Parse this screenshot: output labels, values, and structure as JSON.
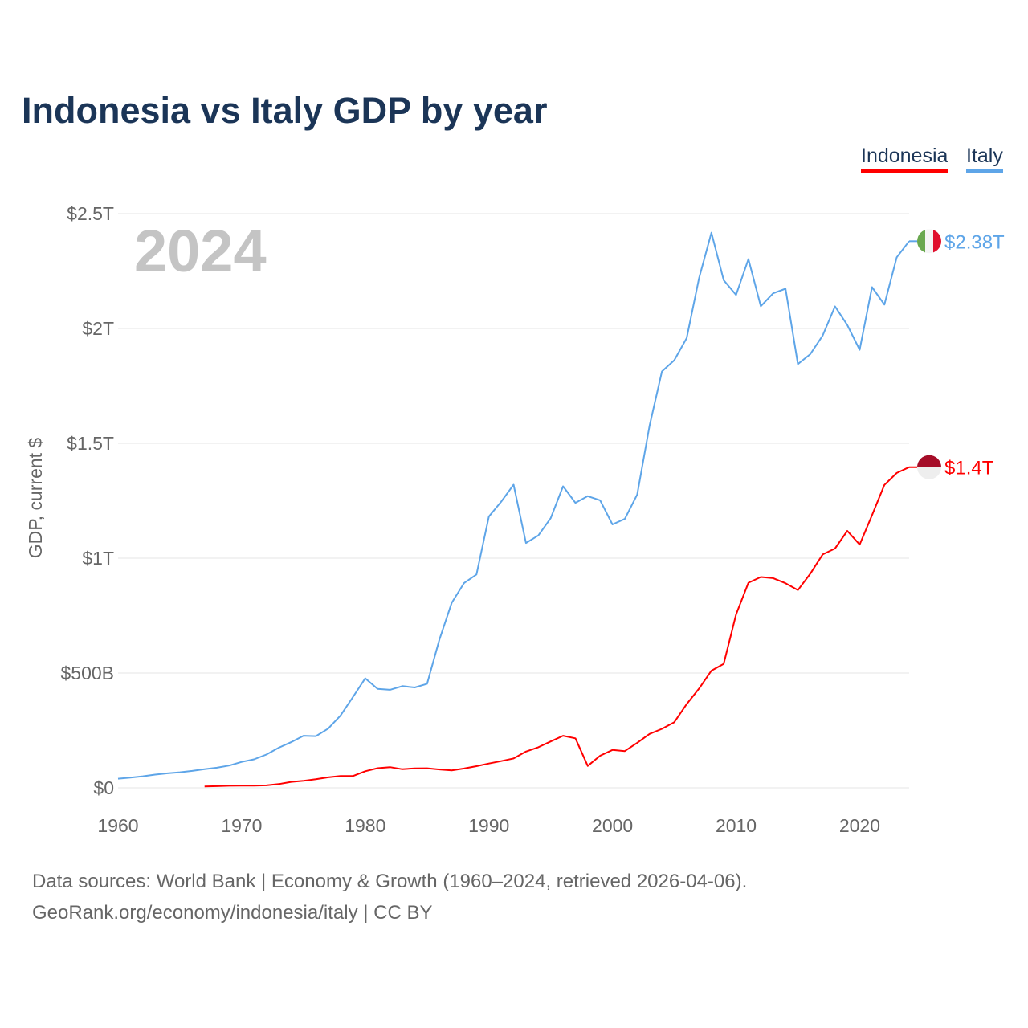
{
  "title": "Indonesia vs Italy GDP by year",
  "footer": {
    "line1": "Data sources: World Bank | Economy & Growth (1960–2024, retrieved 2026-04-06).",
    "line2": "GeoRank.org/economy/indonesia/italy | CC BY"
  },
  "chart_data": {
    "type": "line",
    "title": "Indonesia vs Italy GDP by year",
    "xlabel": "",
    "ylabel": "GDP, current $",
    "year_label": "2024",
    "xlim": [
      1960,
      2024
    ],
    "ylim": [
      0,
      2.5
    ],
    "y_unit": "trillion USD",
    "x_ticks": [
      1960,
      1970,
      1980,
      1990,
      2000,
      2010,
      2020
    ],
    "y_ticks": [
      {
        "v": 0,
        "label": "$0"
      },
      {
        "v": 0.5,
        "label": "$500B"
      },
      {
        "v": 1,
        "label": "$1T"
      },
      {
        "v": 1.5,
        "label": "$1.5T"
      },
      {
        "v": 2,
        "label": "$2T"
      },
      {
        "v": 2.5,
        "label": "$2.5T"
      }
    ],
    "grid": true,
    "legend_position": "top-right",
    "colors": {
      "Indonesia": "#ff0000",
      "Italy": "#5ea5e8"
    },
    "series": [
      {
        "name": "Indonesia",
        "start_year": 1967,
        "end_label": "$1.4T",
        "values": [
          0.006,
          0.0074,
          0.0091,
          0.0097,
          0.0093,
          0.0108,
          0.0163,
          0.0258,
          0.0305,
          0.0373,
          0.0458,
          0.0515,
          0.0515,
          0.0725,
          0.0855,
          0.0902,
          0.0811,
          0.0849,
          0.0853,
          0.0799,
          0.0759,
          0.0843,
          0.0945,
          0.106,
          0.1166,
          0.128,
          0.158,
          0.1769,
          0.202,
          0.227,
          0.2157,
          0.0954,
          0.14,
          0.165,
          0.16,
          0.196,
          0.235,
          0.257,
          0.2859,
          0.3646,
          0.432,
          0.51,
          0.54,
          0.755,
          0.893,
          0.918,
          0.913,
          0.891,
          0.861,
          0.932,
          1.016,
          1.042,
          1.119,
          1.059,
          1.187,
          1.319,
          1.371,
          1.396
        ]
      },
      {
        "name": "Italy",
        "start_year": 1960,
        "end_label": "$2.38T",
        "values": [
          0.04,
          0.0448,
          0.0504,
          0.0577,
          0.0632,
          0.068,
          0.0737,
          0.0812,
          0.0879,
          0.0971,
          0.113,
          0.124,
          0.145,
          0.175,
          0.199,
          0.227,
          0.225,
          0.258,
          0.315,
          0.395,
          0.477,
          0.431,
          0.427,
          0.443,
          0.437,
          0.453,
          0.646,
          0.806,
          0.892,
          0.929,
          1.181,
          1.246,
          1.32,
          1.066,
          1.099,
          1.174,
          1.313,
          1.241,
          1.27,
          1.252,
          1.147,
          1.171,
          1.277,
          1.577,
          1.813,
          1.862,
          1.958,
          2.219,
          2.417,
          2.21,
          2.146,
          2.302,
          2.097,
          2.153,
          2.173,
          1.845,
          1.888,
          1.969,
          2.096,
          2.015,
          1.907,
          2.18,
          2.104,
          2.31,
          2.38
        ]
      }
    ]
  }
}
